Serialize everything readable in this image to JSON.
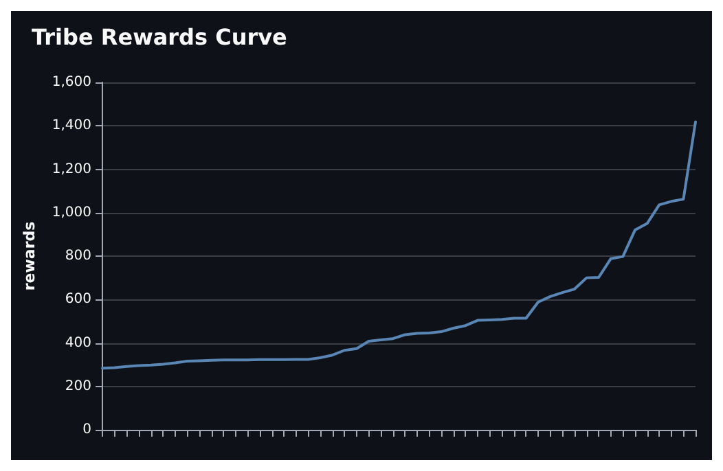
{
  "chart_data": {
    "type": "line",
    "title": "Tribe Rewards Curve",
    "ylabel": "rewards",
    "categories": [
      null,
      null,
      null,
      null,
      null,
      null,
      null,
      null,
      null,
      null,
      null,
      null,
      null,
      null,
      null,
      null,
      null,
      null,
      null,
      null,
      null,
      null,
      null,
      null,
      null,
      null,
      null,
      null,
      null,
      null,
      null,
      null,
      null,
      null,
      null,
      null,
      null,
      null,
      null,
      null,
      null,
      null,
      null,
      null,
      null,
      null,
      null,
      null,
      null,
      null
    ],
    "series": [
      {
        "color": "#5a86b5",
        "values": [
          284,
          286,
          292,
          296,
          298,
          302,
          308,
          316,
          318,
          320,
          322,
          322,
          322,
          323,
          323,
          323,
          324,
          324,
          332,
          344,
          366,
          374,
          408,
          414,
          420,
          438,
          444,
          446,
          452,
          468,
          480,
          504,
          506,
          508,
          514,
          514,
          588,
          614,
          632,
          648,
          700,
          702,
          788,
          798,
          920,
          950,
          1036,
          1052,
          1062,
          1418
        ]
      }
    ],
    "ylim": [
      0,
      1600
    ],
    "yticks": [
      {
        "value": 0,
        "label": "0"
      },
      {
        "value": 200,
        "label": "200"
      },
      {
        "value": 400,
        "label": "400"
      },
      {
        "value": 600,
        "label": "600"
      },
      {
        "value": 800,
        "label": "800"
      },
      {
        "value": 1000,
        "label": "1,000"
      },
      {
        "value": 1200,
        "label": "1,200"
      },
      {
        "value": 1400,
        "label": "1,400"
      },
      {
        "value": 1600,
        "label": "1,600"
      }
    ],
    "grid": "y",
    "line_style": "solid",
    "tick_labels": "y"
  }
}
